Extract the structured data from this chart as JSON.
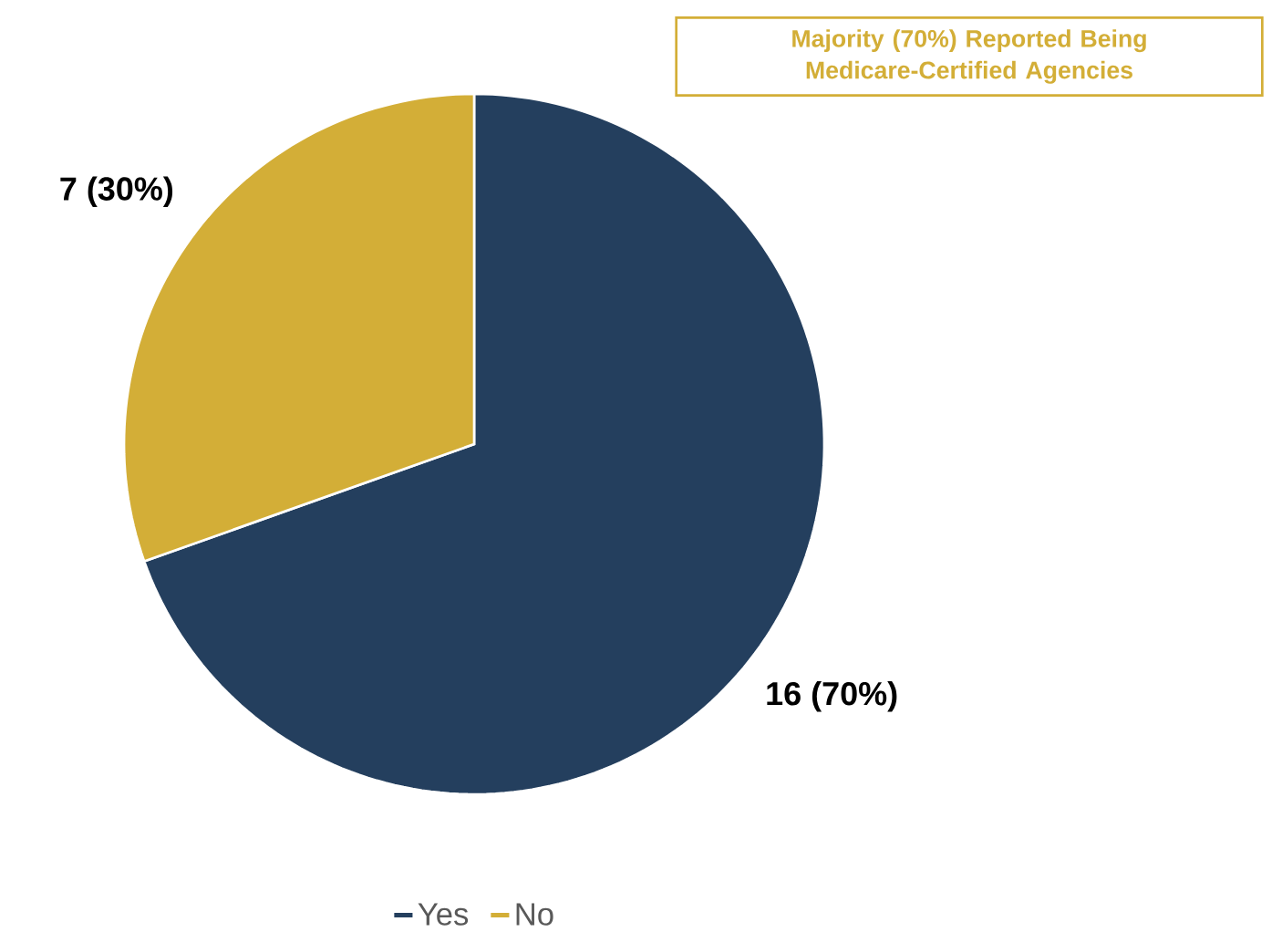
{
  "chart_data": {
    "type": "pie",
    "categories": [
      "Yes",
      "No"
    ],
    "values": [
      16,
      7
    ],
    "colors": [
      "#243f5e",
      "#d3ae37"
    ],
    "value_labels": [
      "16 (70%)",
      "7 (30%)"
    ],
    "legend": "bottom",
    "annotations": [
      "Majority (70%) Reported Being Medicare-Certified Agencies"
    ]
  }
}
